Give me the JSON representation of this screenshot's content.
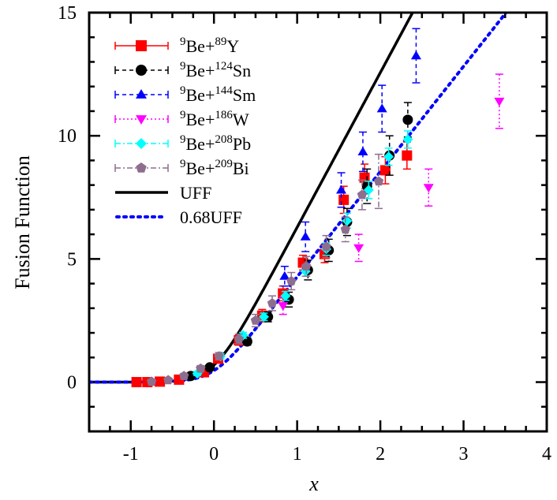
{
  "chart_data": {
    "type": "scatter",
    "title": "",
    "xlabel": "x",
    "ylabel": "Fusion Function",
    "xlim": [
      -1.5,
      4
    ],
    "ylim": [
      -2,
      15
    ],
    "xticks": [
      -1,
      0,
      1,
      2,
      3,
      4
    ],
    "yticks": [
      0,
      5,
      10,
      15
    ],
    "xtick_labels": [
      "-1",
      "0",
      "1",
      "2",
      "3",
      "4"
    ],
    "ytick_labels": [
      "0",
      "5",
      "10",
      "15"
    ],
    "grid": false,
    "legend_position": "upper left",
    "series": [
      {
        "name": "9Be+89Y",
        "pre": "9",
        "mid": "Be+",
        "sup": "89",
        "post": "Y",
        "color": "#ff0000",
        "marker": "square",
        "linestyle": "solid",
        "points": [
          {
            "x": -0.93,
            "y": 0.0,
            "err": 0.1
          },
          {
            "x": -0.8,
            "y": 0.0,
            "err": 0.1
          },
          {
            "x": -0.65,
            "y": 0.02,
            "err": 0.1
          },
          {
            "x": -0.42,
            "y": 0.1,
            "err": 0.1
          },
          {
            "x": -0.12,
            "y": 0.4,
            "err": 0.1
          },
          {
            "x": 0.05,
            "y": 0.95,
            "err": 0.15
          },
          {
            "x": 0.3,
            "y": 1.7,
            "err": 0.2
          },
          {
            "x": 0.58,
            "y": 2.7,
            "err": 0.25
          },
          {
            "x": 0.83,
            "y": 3.6,
            "err": 0.3
          },
          {
            "x": 1.07,
            "y": 4.85,
            "err": 0.3
          },
          {
            "x": 1.33,
            "y": 5.2,
            "err": 0.35
          },
          {
            "x": 1.56,
            "y": 7.4,
            "err": 0.55
          },
          {
            "x": 1.81,
            "y": 8.3,
            "err": 0.55
          },
          {
            "x": 2.06,
            "y": 8.6,
            "err": 0.55
          },
          {
            "x": 2.32,
            "y": 9.2,
            "err": 0.55
          }
        ]
      },
      {
        "name": "9Be+124Sn",
        "pre": "9",
        "mid": "Be+",
        "sup": "124",
        "post": "Sn",
        "color": "#000000",
        "marker": "circle",
        "linestyle": "dashed",
        "points": [
          {
            "x": -0.28,
            "y": 0.25,
            "err": 0.1
          },
          {
            "x": -0.05,
            "y": 0.6,
            "err": 0.1
          },
          {
            "x": 0.4,
            "y": 1.65,
            "err": 0.15
          },
          {
            "x": 0.65,
            "y": 2.65,
            "err": 0.2
          },
          {
            "x": 0.9,
            "y": 3.35,
            "err": 0.3
          },
          {
            "x": 1.13,
            "y": 4.55,
            "err": 0.4
          },
          {
            "x": 1.38,
            "y": 5.35,
            "err": 0.45
          },
          {
            "x": 1.6,
            "y": 6.5,
            "err": 0.55
          },
          {
            "x": 1.84,
            "y": 7.95,
            "err": 0.7
          },
          {
            "x": 2.11,
            "y": 9.2,
            "err": 0.8
          },
          {
            "x": 2.33,
            "y": 10.65,
            "err": 0.7
          }
        ]
      },
      {
        "name": "9Be+144Sm",
        "pre": "9",
        "mid": "Be+",
        "sup": "144",
        "post": "Sm",
        "color": "#0000ff",
        "marker": "triangle-up",
        "linestyle": "dashed",
        "points": [
          {
            "x": 0.85,
            "y": 4.3,
            "err": 0.4
          },
          {
            "x": 1.1,
            "y": 5.9,
            "err": 0.6
          },
          {
            "x": 1.53,
            "y": 7.8,
            "err": 0.7
          },
          {
            "x": 1.79,
            "y": 9.35,
            "err": 0.8
          },
          {
            "x": 2.02,
            "y": 11.1,
            "err": 0.95
          },
          {
            "x": 2.43,
            "y": 13.25,
            "err": 1.1
          }
        ]
      },
      {
        "name": "9Be+186W",
        "pre": "9",
        "mid": "Be+",
        "sup": "186",
        "post": "W",
        "color": "#ff00ff",
        "marker": "triangle-down",
        "linestyle": "dotted",
        "points": [
          {
            "x": 0.83,
            "y": 3.1,
            "err": 0.35
          },
          {
            "x": 1.74,
            "y": 5.45,
            "err": 0.55
          },
          {
            "x": 2.58,
            "y": 7.9,
            "err": 0.75
          },
          {
            "x": 3.43,
            "y": 11.4,
            "err": 1.1
          }
        ]
      },
      {
        "name": "9Be+208Pb",
        "pre": "9",
        "mid": "Be+",
        "sup": "208",
        "post": "Pb",
        "color": "#00ffff",
        "marker": "diamond",
        "linestyle": "dashdot",
        "points": [
          {
            "x": -0.2,
            "y": 0.35,
            "err": 0.08
          },
          {
            "x": 0.08,
            "y": 1.05,
            "err": 0.1
          },
          {
            "x": 0.35,
            "y": 1.9,
            "err": 0.12
          },
          {
            "x": 0.6,
            "y": 2.65,
            "err": 0.15
          },
          {
            "x": 0.86,
            "y": 3.5,
            "err": 0.18
          },
          {
            "x": 1.1,
            "y": 4.5,
            "err": 0.2
          },
          {
            "x": 1.35,
            "y": 5.4,
            "err": 0.25
          },
          {
            "x": 1.6,
            "y": 6.55,
            "err": 0.3
          },
          {
            "x": 1.86,
            "y": 7.8,
            "err": 0.35
          },
          {
            "x": 2.1,
            "y": 9.15,
            "err": 0.35
          },
          {
            "x": 2.33,
            "y": 9.85,
            "err": 0.35
          }
        ]
      },
      {
        "name": "9Be+209Bi",
        "pre": "9",
        "mid": "Be+",
        "sup": "209",
        "post": "Bi",
        "color": "#8e6e8e",
        "marker": "pentagon",
        "linestyle": "dashdot",
        "points": [
          {
            "x": -0.75,
            "y": 0.02,
            "err": 0.08
          },
          {
            "x": -0.55,
            "y": 0.08,
            "err": 0.08
          },
          {
            "x": -0.36,
            "y": 0.25,
            "err": 0.1
          },
          {
            "x": -0.16,
            "y": 0.55,
            "err": 0.12
          },
          {
            "x": 0.06,
            "y": 1.05,
            "err": 0.15
          },
          {
            "x": 0.3,
            "y": 1.75,
            "err": 0.2
          },
          {
            "x": 0.5,
            "y": 2.5,
            "err": 0.25
          },
          {
            "x": 0.7,
            "y": 3.2,
            "err": 0.3
          },
          {
            "x": 0.93,
            "y": 4.1,
            "err": 0.35
          },
          {
            "x": 1.11,
            "y": 4.7,
            "err": 0.4
          },
          {
            "x": 1.35,
            "y": 5.5,
            "err": 0.45
          },
          {
            "x": 1.58,
            "y": 6.2,
            "err": 0.5
          },
          {
            "x": 1.78,
            "y": 7.6,
            "err": 0.6
          },
          {
            "x": 1.98,
            "y": 8.15,
            "err": 1.1
          }
        ]
      }
    ],
    "curves": [
      {
        "name": "UFF",
        "color": "#000000",
        "linestyle": "solid",
        "scale": 1.0
      },
      {
        "name": "0.68UFF",
        "color": "#0000ff",
        "linestyle": "dotted",
        "scale": 0.68
      }
    ]
  },
  "legend": {
    "uff_label": "UFF",
    "uff068_label": "0.68UFF"
  }
}
